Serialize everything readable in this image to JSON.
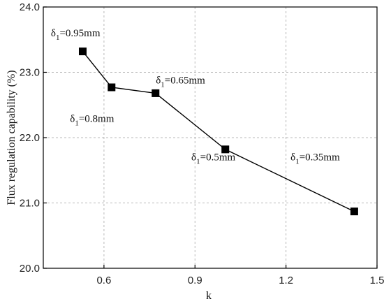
{
  "chart_data": {
    "type": "line",
    "title": "",
    "xlabel": "k",
    "ylabel": "Flux regulation capability (%)",
    "xlim": [
      0.4,
      1.5
    ],
    "ylim": [
      20.0,
      24.0
    ],
    "xticks": [
      0.6,
      0.9,
      1.2,
      1.5
    ],
    "xtick_labels": [
      "0.6",
      "0.9",
      "1.2",
      "1.5"
    ],
    "yticks": [
      20.0,
      21.0,
      22.0,
      23.0,
      24.0
    ],
    "ytick_labels": [
      "20.0",
      "21.0",
      "22.0",
      "23.0",
      "24.0"
    ],
    "grid": true,
    "series": [
      {
        "x": [
          0.53,
          0.625,
          0.77,
          1.0,
          1.425
        ],
        "y": [
          23.32,
          22.77,
          22.68,
          21.82,
          20.87
        ]
      }
    ],
    "annotations": [
      {
        "symbol": "δ",
        "sub": "1",
        "text": "=0.95mm",
        "x": 0.425,
        "y": 23.55
      },
      {
        "symbol": "δ",
        "sub": "1",
        "text": "=0.8mm",
        "x": 0.488,
        "y": 22.24
      },
      {
        "symbol": "δ",
        "sub": "1",
        "text": "=0.65mm",
        "x": 0.771,
        "y": 22.83
      },
      {
        "symbol": "δ",
        "sub": "1",
        "text": "=0.5mm",
        "x": 0.888,
        "y": 21.65
      },
      {
        "symbol": "δ",
        "sub": "1",
        "text": "=0.35mm",
        "x": 1.215,
        "y": 21.65
      }
    ]
  }
}
